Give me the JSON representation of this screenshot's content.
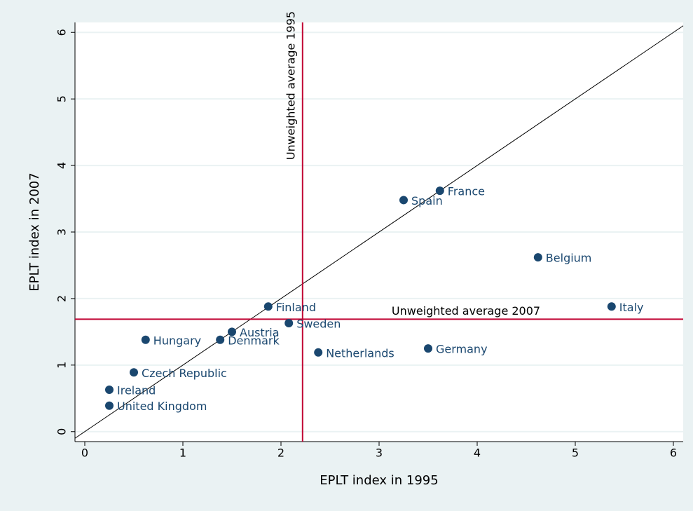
{
  "chart_data": {
    "type": "scatter",
    "xlabel": "EPLT index in 1995",
    "ylabel": "EPLT index in 2007",
    "xlim": [
      -0.1,
      6.1
    ],
    "ylim": [
      -0.15,
      6.15
    ],
    "xticks": [
      0,
      1,
      2,
      3,
      4,
      5,
      6
    ],
    "yticks": [
      0,
      1,
      2,
      3,
      4,
      5,
      6
    ],
    "grid": true,
    "series": [
      {
        "color": "#1a476f",
        "labels": [
          "Finland",
          "Sweden",
          "Austria",
          "Denmark",
          "Hungary",
          "Czech Republic",
          "Ireland",
          "United Kingdom",
          "Netherlands",
          "Germany",
          "Spain",
          "France",
          "Belgium",
          "Italy"
        ],
        "x": [
          1.87,
          2.08,
          1.5,
          1.38,
          0.62,
          0.5,
          0.25,
          0.25,
          2.38,
          3.5,
          3.25,
          3.62,
          4.62,
          5.37
        ],
        "values": [
          1.88,
          1.63,
          1.5,
          1.38,
          1.38,
          0.89,
          0.63,
          0.39,
          1.19,
          1.25,
          3.48,
          3.62,
          2.62,
          1.88
        ]
      }
    ],
    "reference_lines": [
      {
        "axis": "x",
        "value": 2.22,
        "label": "Unweighted average 1995",
        "color": "#c10534"
      },
      {
        "axis": "y",
        "value": 1.69,
        "label": "Unweighted average 2007",
        "color": "#c10534"
      }
    ]
  }
}
